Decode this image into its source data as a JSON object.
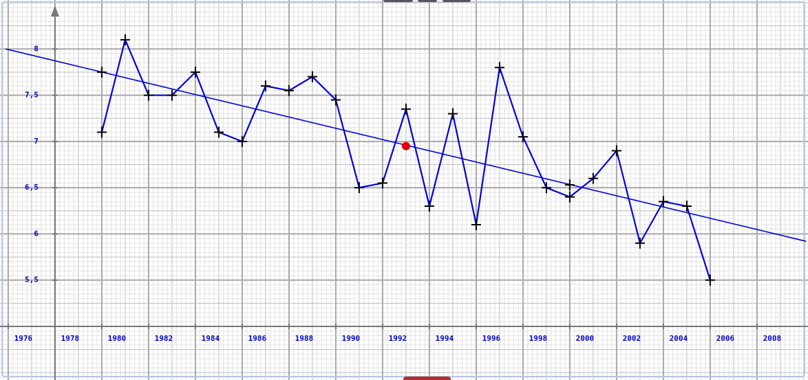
{
  "chart_data": {
    "type": "line",
    "x": [
      1980,
      1981,
      1982,
      1983,
      1984,
      1985,
      1986,
      1987,
      1988,
      1989,
      1990,
      1991,
      1992,
      1993,
      1994,
      1995,
      1996,
      1997,
      1998,
      1999,
      2000,
      2001,
      2002,
      2003,
      2004,
      2005,
      2006
    ],
    "series": [
      {
        "color": "#0000dd",
        "values": [
          7.1,
          8.1,
          7.5,
          7.5,
          7.75,
          7.1,
          7.0,
          7.6,
          7.55,
          7.7,
          7.45,
          6.5,
          6.55,
          7.35,
          6.3,
          7.3,
          6.1,
          7.8,
          7.05,
          6.5,
          6.4,
          6.6,
          6.9,
          5.9,
          6.35,
          6.3,
          5.5
        ]
      }
    ],
    "extra_points": {
      "x": [
        1980,
        2000
      ],
      "values": [
        7.75,
        6.53
      ],
      "color": "#000000"
    },
    "highlight_point": {
      "x": 1993,
      "value": 6.95,
      "color": "#e00000"
    },
    "trend_line": {
      "x": [
        1975.9,
        2010.1
      ],
      "values": [
        8.0,
        5.92
      ],
      "color": "#0000dd"
    },
    "xlim": [
      1975.65,
      2010.18
    ],
    "ylim": [
      4.42,
      8.53
    ],
    "x_axis_at": 5,
    "y_axis_at": 1978,
    "xticks": [
      1976,
      1978,
      1980,
      1982,
      1984,
      1986,
      1988,
      1990,
      1992,
      1994,
      1996,
      1998,
      2000,
      2002,
      2004,
      2006,
      2008
    ],
    "yticks": [
      {
        "value": 5.5,
        "label": "5,5"
      },
      6,
      {
        "value": 6.5,
        "label": "6,5"
      },
      7,
      {
        "value": 7.5,
        "label": "7,5"
      },
      8
    ],
    "grid": true
  }
}
